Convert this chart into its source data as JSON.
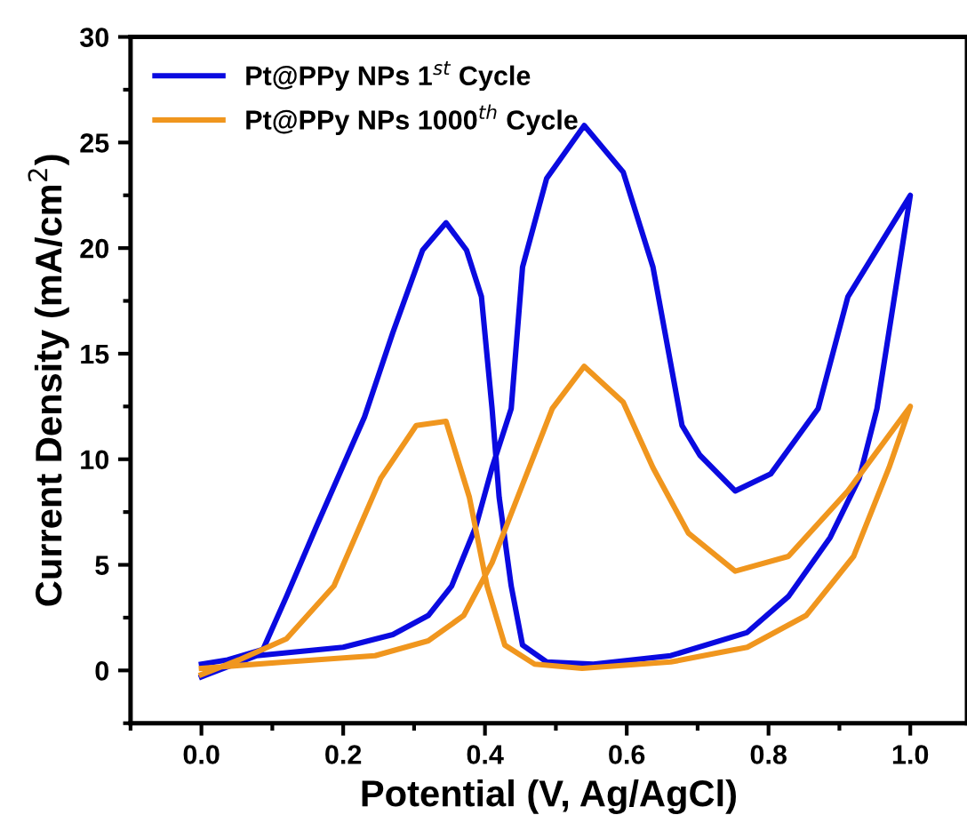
{
  "chart_data": {
    "type": "line",
    "xlabel": "Potential (V, Ag/AgCl)",
    "ylabel": "Current Density (mA/cm$^{2}$)",
    "xlim": [
      -0.1,
      1.08
    ],
    "xticks": [
      {
        "value": 0.0,
        "label": "0.0"
      },
      {
        "value": 0.2,
        "label": "0.2"
      },
      {
        "value": 0.4,
        "label": "0.4"
      },
      {
        "value": 0.6,
        "label": "0.6"
      },
      {
        "value": 0.8,
        "label": "0.8"
      },
      {
        "value": 1.0,
        "label": "1.0"
      }
    ],
    "ylim": [
      -2.5,
      30
    ],
    "yticks": [
      0,
      5,
      10,
      15,
      20,
      25,
      30
    ],
    "grid": false,
    "legend": "top left",
    "marker": "none",
    "line_style": "solid",
    "series": [
      {
        "name": "Pt@PPy NPs 1$^{st}$ Cycle",
        "color": "#0a0ae0",
        "x": [
          0.0,
          0.078,
          0.2,
          0.27,
          0.32,
          0.353,
          0.387,
          0.41,
          0.437,
          0.453,
          0.487,
          0.54,
          0.595,
          0.637,
          0.678,
          0.703,
          0.753,
          0.803,
          0.87,
          0.912,
          1.0,
          0.953,
          0.928,
          0.887,
          0.828,
          0.77,
          0.662,
          0.553,
          0.487,
          0.453,
          0.437,
          0.42,
          0.41,
          0.395,
          0.374,
          0.345,
          0.312,
          0.27,
          0.23,
          0.162,
          0.12,
          0.087,
          0.037,
          0.0
        ],
        "values": [
          -0.3,
          0.7,
          1.1,
          1.7,
          2.6,
          4.0,
          6.8,
          9.6,
          12.4,
          19.1,
          23.3,
          25.8,
          23.6,
          19.1,
          11.6,
          10.2,
          8.5,
          9.3,
          12.4,
          17.7,
          22.5,
          12.4,
          9.1,
          6.3,
          3.5,
          1.8,
          0.7,
          0.3,
          0.4,
          1.2,
          4.0,
          8.2,
          12.4,
          17.7,
          19.9,
          21.2,
          19.9,
          16.0,
          12.0,
          6.8,
          3.5,
          1.0,
          0.5,
          0.3
        ]
      },
      {
        "name": "Pt@PPy NPs 1000$^{th}$ Cycle",
        "color": "#f0961e",
        "x": [
          0.0,
          0.12,
          0.245,
          0.32,
          0.37,
          0.41,
          0.453,
          0.495,
          0.54,
          0.595,
          0.637,
          0.687,
          0.753,
          0.828,
          0.912,
          1.0,
          0.97,
          0.92,
          0.853,
          0.77,
          0.662,
          0.537,
          0.47,
          0.428,
          0.403,
          0.378,
          0.345,
          0.303,
          0.253,
          0.187,
          0.12,
          0.053,
          0.0
        ],
        "values": [
          0.1,
          0.4,
          0.7,
          1.4,
          2.6,
          5.1,
          8.8,
          12.4,
          14.4,
          12.7,
          9.6,
          6.5,
          4.7,
          5.4,
          8.5,
          12.5,
          9.6,
          5.4,
          2.6,
          1.1,
          0.4,
          0.1,
          0.3,
          1.2,
          4.0,
          8.2,
          11.8,
          11.6,
          9.1,
          4.0,
          1.5,
          0.5,
          -0.2
        ]
      }
    ]
  }
}
